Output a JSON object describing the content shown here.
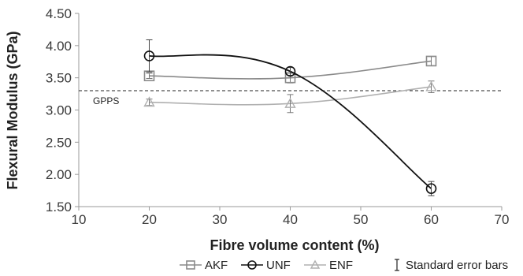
{
  "chart_data": {
    "type": "line",
    "xlabel": "Fibre volume content (%)",
    "ylabel": "Flexural Modulus (GPa)",
    "xlim": [
      10,
      70
    ],
    "ylim": [
      1.5,
      4.5
    ],
    "xticks": [
      "10",
      "20",
      "30",
      "40",
      "50",
      "60",
      "70"
    ],
    "yticks": [
      "1.50",
      "2.00",
      "2.50",
      "3.00",
      "3.50",
      "4.00",
      "4.50"
    ],
    "grid": false,
    "legend_position": "bottom",
    "series": [
      {
        "name": "AKF",
        "marker": "square",
        "color": "#8a8a8a",
        "x": [
          20,
          40,
          60
        ],
        "y": [
          3.53,
          3.5,
          3.76
        ],
        "err": [
          0.04,
          0.08,
          0.07
        ]
      },
      {
        "name": "UNF",
        "marker": "circle",
        "color": "#111111",
        "x": [
          20,
          40,
          60
        ],
        "y": [
          3.84,
          3.6,
          1.78
        ],
        "err": [
          0.25,
          0.06,
          0.11
        ]
      },
      {
        "name": "ENF",
        "marker": "triangle",
        "color": "#b0b0b0",
        "x": [
          20,
          40,
          60
        ],
        "y": [
          3.12,
          3.1,
          3.36
        ],
        "err": [
          0.05,
          0.14,
          0.09
        ]
      }
    ],
    "reference_line": {
      "label": "GPPS",
      "y": 3.3,
      "style": "dashed"
    },
    "legend_note": "Standard error bars"
  }
}
